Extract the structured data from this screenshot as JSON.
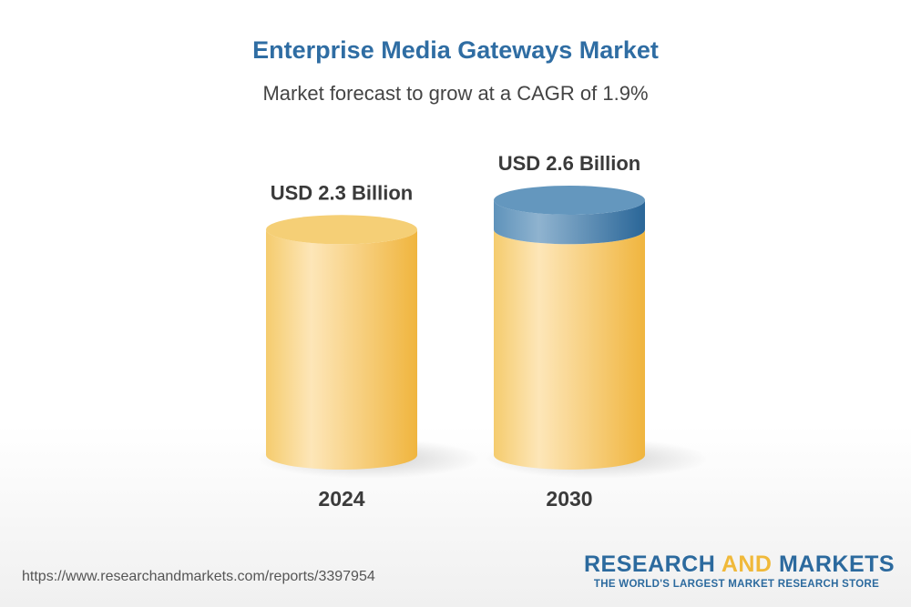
{
  "chart_data": {
    "type": "bar",
    "title": "Enterprise Media Gateways Market",
    "subtitle": "Market forecast to grow at a CAGR of 1.9%",
    "categories": [
      "2024",
      "2030"
    ],
    "values": [
      2.3,
      2.6
    ],
    "data_labels": [
      "USD 2.3 Billion",
      "USD 2.6 Billion"
    ],
    "unit": "USD Billion",
    "style": "3d-cylinder",
    "colors": {
      "base": "#f2c259",
      "base_highlight": "#fde6b8",
      "growth": "#5f93bb",
      "growth_dark": "#2a6698",
      "title": "#2f6da3"
    }
  },
  "footer": {
    "url": "https://www.researchandmarkets.com/reports/3397954",
    "logo_part1": "RESEARCH",
    "logo_part2": "AND",
    "logo_part3": "MARKETS",
    "logo_tagline": "THE WORLD'S LARGEST MARKET RESEARCH STORE"
  }
}
